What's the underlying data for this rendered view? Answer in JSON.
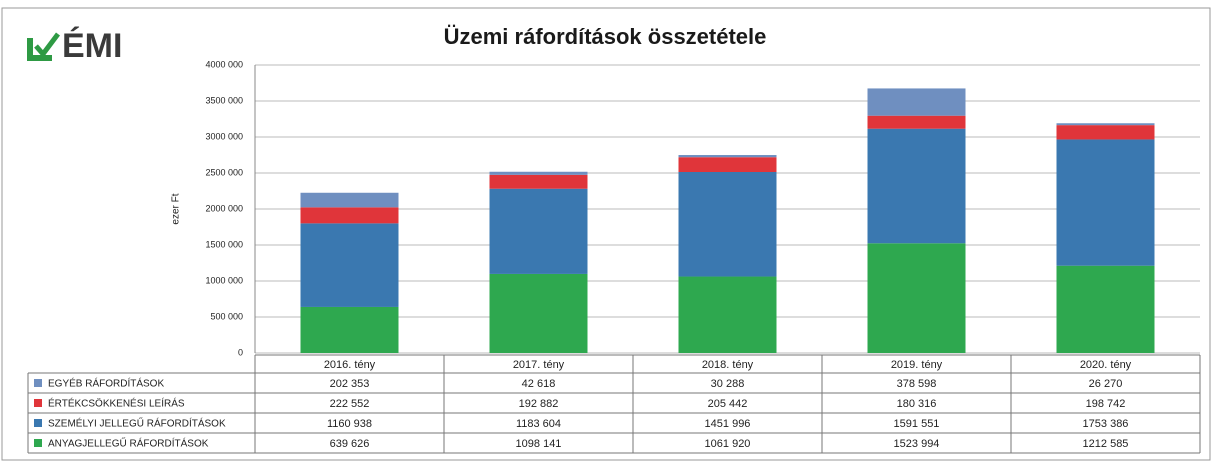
{
  "chart_data": {
    "type": "bar",
    "stacked": true,
    "logo": "ÉMI",
    "title": "Üzemi ráfordítások összetétele",
    "y_label": "ezer Ft",
    "categories": [
      "2016. tény",
      "2017. tény",
      "2018. tény",
      "2019. tény",
      "2020. tény"
    ],
    "series": [
      {
        "name": "EGYÉB RÁFORDÍTÁSOK",
        "color": "#6f8fc0",
        "values": [
          202353,
          42618,
          30288,
          378598,
          26270
        ],
        "value_labels": [
          "202 353",
          "42 618",
          "30 288",
          "378 598",
          "26 270"
        ]
      },
      {
        "name": "ÉRTÉKCSÖKKENÉSI LEÍRÁS",
        "color": "#e0353a",
        "values": [
          222552,
          192882,
          205442,
          180316,
          198742
        ],
        "value_labels": [
          "222 552",
          "192 882",
          "205 442",
          "180 316",
          "198 742"
        ]
      },
      {
        "name": "SZEMÉLYI JELLEGŰ RÁFORDÍTÁSOK",
        "color": "#3a78b0",
        "values": [
          1160938,
          1183604,
          1451996,
          1591551,
          1753386
        ],
        "value_labels": [
          "1160 938",
          "1183 604",
          "1451 996",
          "1591 551",
          "1753 386"
        ]
      },
      {
        "name": "ANYAGJELLEGŰ RÁFORDÍTÁSOK",
        "color": "#2ea84f",
        "values": [
          639626,
          1098141,
          1061920,
          1523994,
          1212585
        ],
        "value_labels": [
          "639 626",
          "1098 141",
          "1061 920",
          "1523 994",
          "1212 585"
        ]
      }
    ],
    "ylim": [
      0,
      4000000
    ],
    "yticks": [
      0,
      {
        "value": 500000,
        "label": "500 000"
      },
      {
        "value": 1000000,
        "label": "1000 000"
      },
      {
        "value": 1500000,
        "label": "1500 000"
      },
      {
        "value": 2000000,
        "label": "2000 000"
      },
      {
        "value": 2500000,
        "label": "2500 000"
      },
      {
        "value": 3000000,
        "label": "3000 000"
      },
      {
        "value": 3500000,
        "label": "3500 000"
      },
      {
        "value": 4000000,
        "label": "4000 000"
      }
    ],
    "grid": true
  }
}
